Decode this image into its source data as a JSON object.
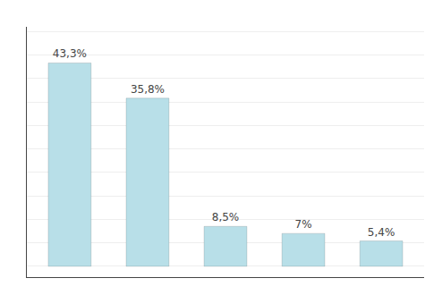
{
  "chart_data": {
    "type": "bar",
    "categories": [
      null,
      null,
      null,
      null,
      null
    ],
    "values": [
      43.3,
      35.8,
      8.5,
      7.0,
      5.4
    ],
    "value_labels": [
      "43,3%",
      "35,8%",
      "8,5%",
      "7%",
      "5,4%"
    ],
    "data_labels": true,
    "color": "#b8dfe8",
    "ylim": [
      -2.3,
      51
    ],
    "yticks": [
      0,
      5,
      10,
      15,
      20,
      25,
      30,
      35,
      40,
      45,
      50
    ],
    "grid": true,
    "tick_labels": false
  }
}
